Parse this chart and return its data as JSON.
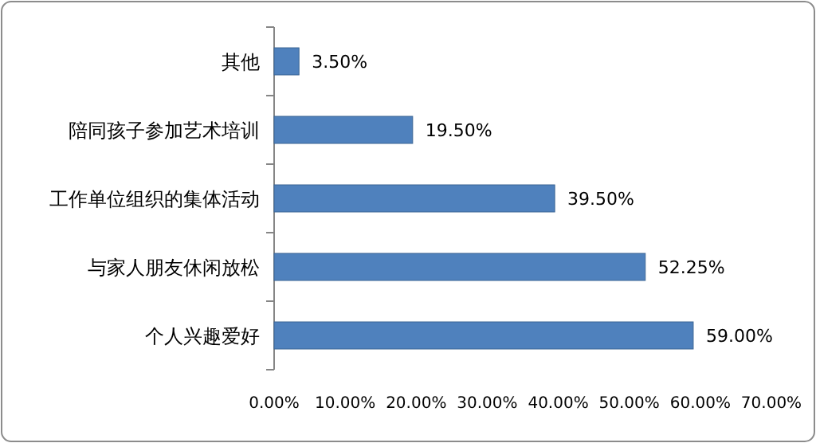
{
  "chart_data": {
    "type": "bar",
    "orientation": "horizontal",
    "categories": [
      "其他",
      "陪同孩子参加艺术培训",
      "工作单位组织的集体活动",
      "与家人朋友休闲放松",
      "个人兴趣爱好"
    ],
    "values": [
      3.5,
      19.5,
      39.5,
      52.25,
      59.0
    ],
    "value_labels": [
      "3.50%",
      "19.50%",
      "39.50%",
      "52.25%",
      "59.00%"
    ],
    "color": "#4f81bd",
    "xlim": [
      0,
      70
    ],
    "xticks": [
      {
        "value": 0,
        "label": "0.00%"
      },
      {
        "value": 10,
        "label": "10.00%"
      },
      {
        "value": 20,
        "label": "20.00%"
      },
      {
        "value": 30,
        "label": "30.00%"
      },
      {
        "value": 40,
        "label": "40.00%"
      },
      {
        "value": 50,
        "label": "50.00%"
      },
      {
        "value": 60,
        "label": "60.00%"
      },
      {
        "value": 70,
        "label": "70.00%"
      }
    ],
    "grid": false
  }
}
